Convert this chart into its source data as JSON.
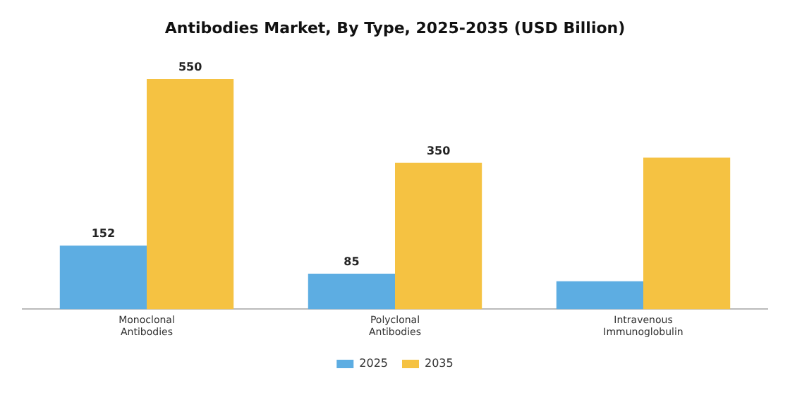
{
  "chart_data": {
    "type": "bar",
    "title": "Antibodies Market, By Type, 2025-2035 (USD Billion)",
    "categories": [
      "Monoclonal Antibodies",
      "Polyclonal Antibodies",
      "Intravenous Immunoglobulin"
    ],
    "series": [
      {
        "name": "2025",
        "color": "#5dade2",
        "values": [
          152,
          85,
          67
        ],
        "value_labels": [
          "152",
          "85",
          null
        ]
      },
      {
        "name": "2035",
        "color": "#f5c242",
        "values": [
          550,
          350,
          362
        ],
        "value_labels": [
          "550",
          "350",
          null
        ]
      }
    ],
    "legend": "bottom",
    "grid": false
  }
}
